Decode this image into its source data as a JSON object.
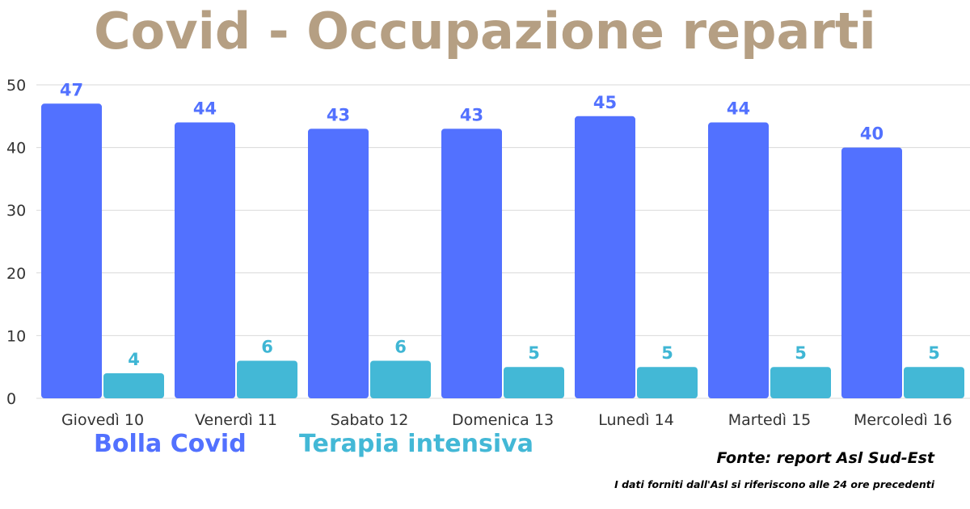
{
  "chart_data": {
    "type": "bar",
    "title": "Covid - Occupazione reparti",
    "categories": [
      "Giovedì 10",
      "Venerdì 11",
      "Sabato 12",
      "Domenica 13",
      "Lunedì 14",
      "Martedì 15",
      "Mercoledì 16"
    ],
    "series": [
      {
        "name": "Bolla Covid",
        "color": "#5271ff",
        "label_color": "#5271ff",
        "values": [
          47,
          44,
          43,
          43,
          45,
          44,
          40
        ]
      },
      {
        "name": "Terapia intensiva",
        "color": "#43b8d6",
        "label_color": "#3fb6d4",
        "values": [
          4,
          6,
          6,
          5,
          5,
          5,
          5
        ]
      }
    ],
    "ylim": [
      0,
      50
    ],
    "yticks": [
      0,
      10,
      20,
      30,
      40,
      50
    ],
    "grid": true,
    "legend_position": "bottom-left"
  },
  "footer": {
    "source": "Fonte: report Asl Sud-Est",
    "note": "I dati forniti dall'Asl si riferiscono alle 24 ore precedenti"
  },
  "colors": {
    "title": "#b59f83",
    "grid": "#d9d9d9",
    "axis_text": "#333333"
  }
}
